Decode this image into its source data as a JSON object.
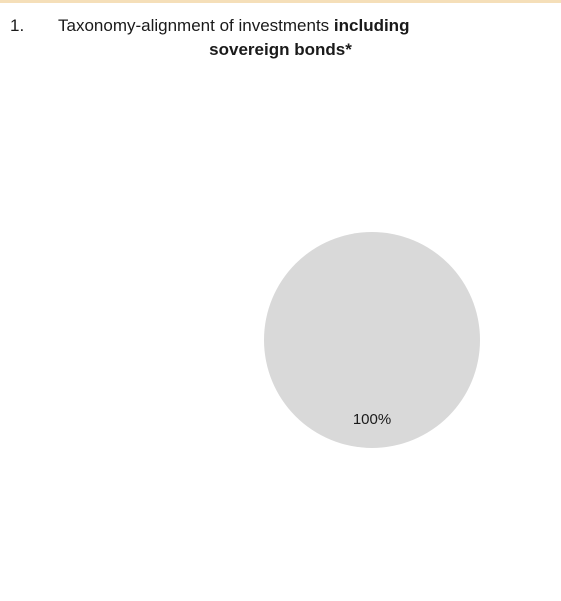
{
  "colors": {
    "top_band": "#f5dfb9",
    "slice": "#d9d9d9",
    "label": "#1a1a1a"
  },
  "heading": {
    "number": "1.",
    "text_normal": "Taxonomy-alignment of investments ",
    "text_bold_line1": "including",
    "text_bold_line2": "sovereign bonds*"
  },
  "chart_data": {
    "type": "pie",
    "title": "",
    "slices": [
      {
        "label": "",
        "value": 100,
        "data_label": "100%"
      }
    ],
    "legend": "none"
  }
}
